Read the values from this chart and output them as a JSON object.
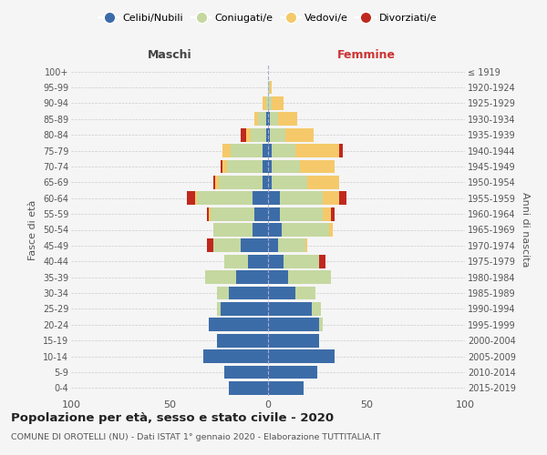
{
  "age_groups_bottom_to_top": [
    "0-4",
    "5-9",
    "10-14",
    "15-19",
    "20-24",
    "25-29",
    "30-34",
    "35-39",
    "40-44",
    "45-49",
    "50-54",
    "55-59",
    "60-64",
    "65-69",
    "70-74",
    "75-79",
    "80-84",
    "85-89",
    "90-94",
    "95-99",
    "100+"
  ],
  "birth_years_bottom_to_top": [
    "2015-2019",
    "2010-2014",
    "2005-2009",
    "2000-2004",
    "1995-1999",
    "1990-1994",
    "1985-1989",
    "1980-1984",
    "1975-1979",
    "1970-1974",
    "1965-1969",
    "1960-1964",
    "1955-1959",
    "1950-1954",
    "1945-1949",
    "1940-1944",
    "1935-1939",
    "1930-1934",
    "1925-1929",
    "1920-1924",
    "≤ 1919"
  ],
  "males_bottom_to_top": {
    "celibi": [
      20,
      22,
      33,
      26,
      30,
      24,
      20,
      16,
      10,
      14,
      8,
      7,
      8,
      3,
      3,
      3,
      1,
      1,
      0,
      0,
      0
    ],
    "coniugati": [
      0,
      0,
      0,
      0,
      0,
      2,
      6,
      16,
      12,
      14,
      20,
      22,
      28,
      22,
      18,
      16,
      8,
      4,
      1,
      0,
      0
    ],
    "vedovi": [
      0,
      0,
      0,
      0,
      0,
      0,
      0,
      0,
      0,
      0,
      0,
      1,
      1,
      2,
      2,
      4,
      2,
      2,
      2,
      0,
      0
    ],
    "divorziati": [
      0,
      0,
      0,
      0,
      0,
      0,
      0,
      0,
      0,
      3,
      0,
      1,
      4,
      1,
      1,
      0,
      3,
      0,
      0,
      0,
      0
    ]
  },
  "females_bottom_to_top": {
    "nubili": [
      18,
      25,
      34,
      26,
      26,
      22,
      14,
      10,
      8,
      5,
      7,
      6,
      6,
      2,
      2,
      2,
      1,
      1,
      0,
      0,
      0
    ],
    "coniugate": [
      0,
      0,
      0,
      0,
      2,
      5,
      10,
      22,
      18,
      14,
      24,
      22,
      22,
      18,
      14,
      12,
      8,
      4,
      2,
      1,
      0
    ],
    "vedove": [
      0,
      0,
      0,
      0,
      0,
      0,
      0,
      0,
      0,
      1,
      2,
      4,
      8,
      16,
      18,
      22,
      14,
      10,
      6,
      1,
      0
    ],
    "divorziate": [
      0,
      0,
      0,
      0,
      0,
      0,
      0,
      0,
      3,
      0,
      0,
      2,
      4,
      0,
      0,
      2,
      0,
      0,
      0,
      0,
      0
    ]
  },
  "colors": {
    "celibi": "#3C6CA8",
    "coniugati": "#C5D8A0",
    "vedovi": "#F5C96A",
    "divorziati": "#C0281E"
  },
  "xlim": 100,
  "title": "Popolazione per età, sesso e stato civile - 2020",
  "subtitle": "COMUNE DI OROTELLI (NU) - Dati ISTAT 1° gennaio 2020 - Elaborazione TUTTITALIA.IT",
  "ylabel_left": "Fasce di età",
  "ylabel_right": "Anni di nascita",
  "xlabel_left": "Maschi",
  "xlabel_right": "Femmine",
  "legend_labels": [
    "Celibi/Nubili",
    "Coniugati/e",
    "Vedovi/e",
    "Divorziati/e"
  ],
  "background_color": "#f5f5f5",
  "maschi_color": "#444444",
  "femmine_color": "#cc3333"
}
